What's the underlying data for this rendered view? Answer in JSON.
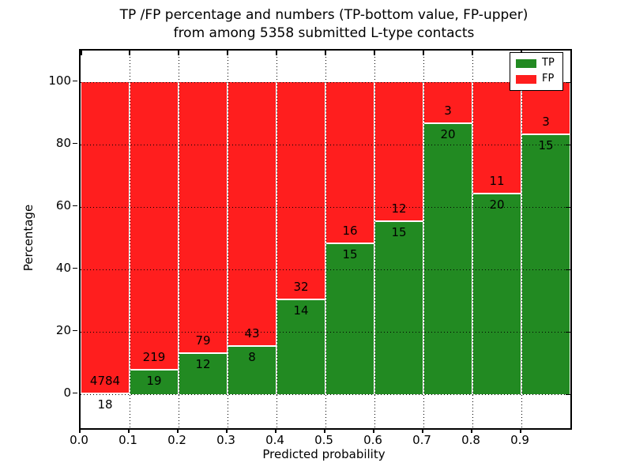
{
  "chart_data": {
    "type": "bar",
    "stacked": true,
    "title_line1": "TP /FP percentage and numbers (TP-bottom value, FP-upper)",
    "title_line2": "from among 5358 submitted L-type contacts",
    "xlabel": "Predicted probability",
    "ylabel": "Percentage",
    "total_contacts": 5358,
    "xlim": [
      0.0,
      1.0
    ],
    "ylim": [
      -11,
      110
    ],
    "grid": "dotted",
    "bin_width": 0.1,
    "x_ticks": [
      {
        "label": "0.0",
        "value": 0.0
      },
      {
        "label": "0.1",
        "value": 0.1
      },
      {
        "label": "0.2",
        "value": 0.2
      },
      {
        "label": "0.3",
        "value": 0.3
      },
      {
        "label": "0.4",
        "value": 0.4
      },
      {
        "label": "0.5",
        "value": 0.5
      },
      {
        "label": "0.6",
        "value": 0.6
      },
      {
        "label": "0.7",
        "value": 0.7
      },
      {
        "label": "0.8",
        "value": 0.8
      },
      {
        "label": "0.9",
        "value": 0.9
      }
    ],
    "y_ticks": [
      {
        "label": "0",
        "value": 0
      },
      {
        "label": "20",
        "value": 20
      },
      {
        "label": "40",
        "value": 40
      },
      {
        "label": "60",
        "value": 60
      },
      {
        "label": "80",
        "value": 80
      },
      {
        "label": "100",
        "value": 100
      }
    ],
    "series": [
      {
        "name": "TP",
        "color": "#228a22"
      },
      {
        "name": "FP",
        "color": "#ff1e1e"
      }
    ],
    "bins": [
      {
        "x_start": 0.0,
        "x_end": 0.1,
        "tp": 18,
        "fp": 4784,
        "tp_pct": 0.37
      },
      {
        "x_start": 0.1,
        "x_end": 0.2,
        "tp": 19,
        "fp": 219,
        "tp_pct": 7.98
      },
      {
        "x_start": 0.2,
        "x_end": 0.3,
        "tp": 12,
        "fp": 79,
        "tp_pct": 13.19
      },
      {
        "x_start": 0.3,
        "x_end": 0.4,
        "tp": 8,
        "fp": 43,
        "tp_pct": 15.69
      },
      {
        "x_start": 0.4,
        "x_end": 0.5,
        "tp": 14,
        "fp": 32,
        "tp_pct": 30.43
      },
      {
        "x_start": 0.5,
        "x_end": 0.6,
        "tp": 15,
        "fp": 16,
        "tp_pct": 48.39
      },
      {
        "x_start": 0.6,
        "x_end": 0.7,
        "tp": 15,
        "fp": 12,
        "tp_pct": 55.56
      },
      {
        "x_start": 0.7,
        "x_end": 0.8,
        "tp": 20,
        "fp": 3,
        "tp_pct": 86.96
      },
      {
        "x_start": 0.8,
        "x_end": 0.9,
        "tp": 20,
        "fp": 11,
        "tp_pct": 64.52
      },
      {
        "x_start": 0.9,
        "x_end": 1.0,
        "tp": 15,
        "fp": 3,
        "tp_pct": 83.33
      }
    ],
    "legend": {
      "position": "upper right",
      "entries": [
        {
          "label": "TP",
          "color": "#228a22"
        },
        {
          "label": "FP",
          "color": "#ff1e1e"
        }
      ]
    }
  }
}
